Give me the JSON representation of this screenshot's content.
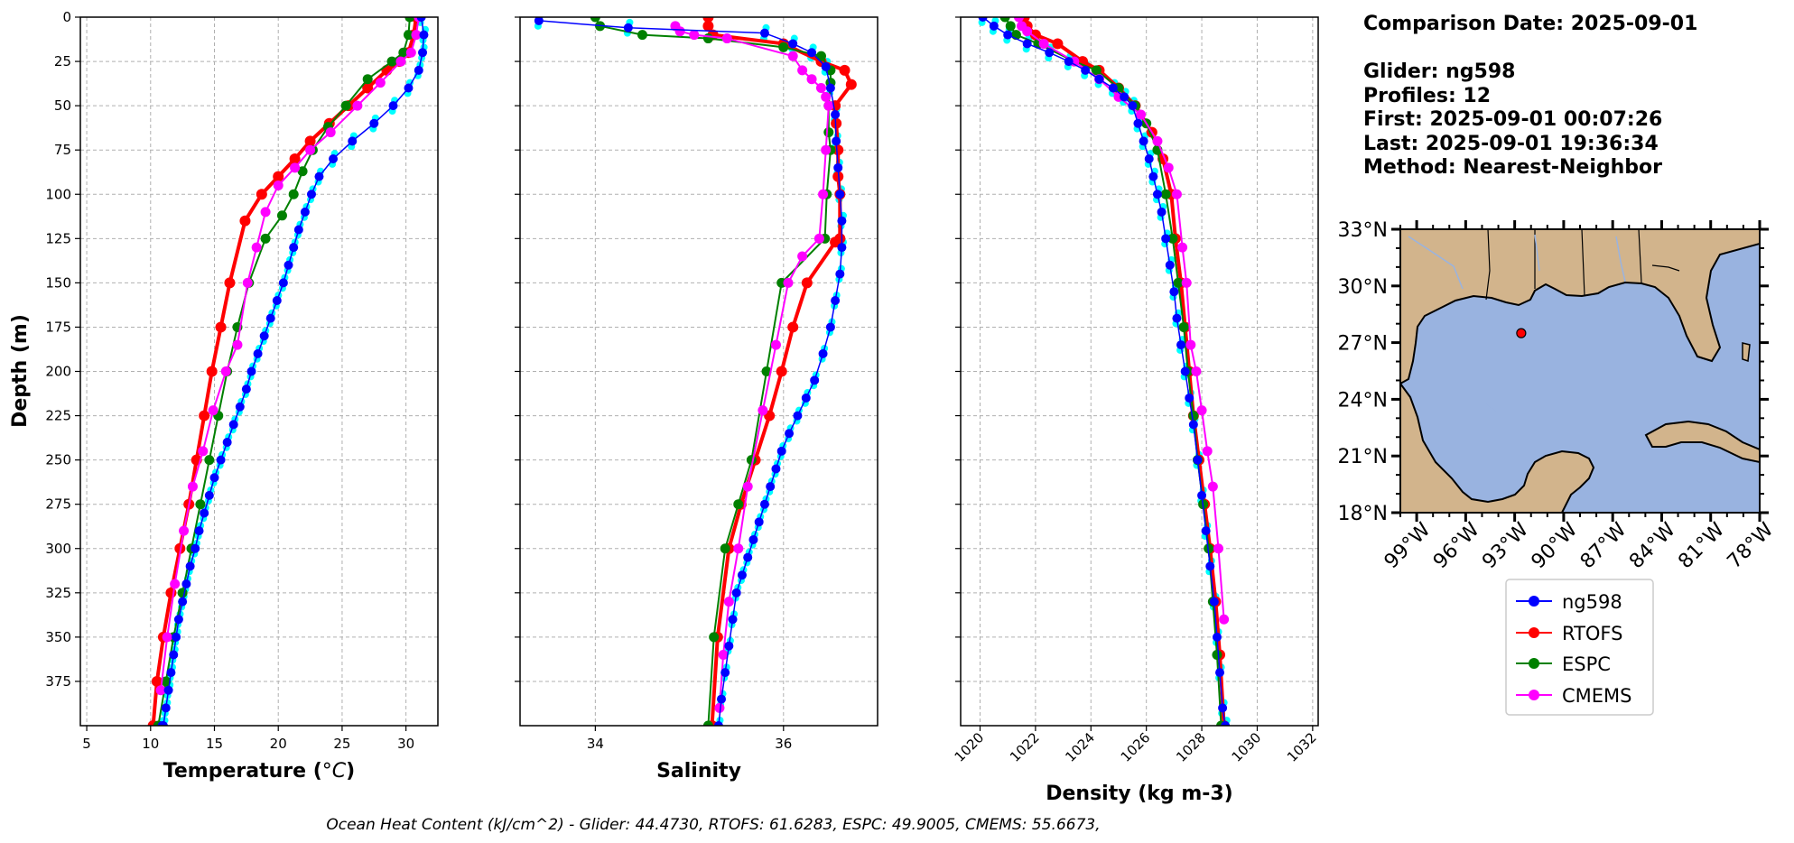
{
  "info": {
    "comparison_date": "Comparison Date: 2025-09-01",
    "glider": "Glider: ng598",
    "profiles": "Profiles: 12",
    "first": "First: 2025-09-01 00:07:26",
    "last": "Last: 2025-09-01 19:36:34",
    "method": "Method: Nearest-Neighbor"
  },
  "footer": "Ocean Heat Content (kJ/cm^2) - Glider: 44.4730,  RTOFS: 61.6283,  ESPC: 49.9005,  CMEMS: 55.6673,",
  "colors": {
    "glider": "#0000ff",
    "glider_individual": "#00ffff",
    "rtofs": "#ff0000",
    "espc": "#008000",
    "cmems": "#ff00ff",
    "land": "#d2b48c",
    "ocean": "#99b3e0",
    "grid": "#b0b0b0"
  },
  "legend": [
    {
      "label": "ng598",
      "color": "#0000ff"
    },
    {
      "label": "RTOFS",
      "color": "#ff0000"
    },
    {
      "label": "ESPC",
      "color": "#008000"
    },
    {
      "label": "CMEMS",
      "color": "#ff00ff"
    }
  ],
  "map": {
    "lat_ticks": [
      "33°N",
      "30°N",
      "27°N",
      "24°N",
      "21°N",
      "18°N"
    ],
    "lon_ticks": [
      "99°W",
      "96°W",
      "93°W",
      "90°W",
      "87°W",
      "84°W",
      "81°W",
      "78°W"
    ],
    "extent": {
      "lon": [
        -100,
        -78
      ],
      "lat": [
        18,
        33
      ]
    },
    "glider_location": {
      "lon": -92.6,
      "lat": 27.5
    }
  },
  "chart_data": [
    {
      "type": "line",
      "xlabel": "Temperature ($^oC$)",
      "xlabel_main": "Temperature (",
      "xlabel_unit": "°C",
      "ylabel": "Depth (m)",
      "xlim": [
        4.5,
        32.5
      ],
      "ylim": [
        400,
        0
      ],
      "grid": true,
      "xticks": [
        5,
        10,
        15,
        20,
        25,
        30
      ],
      "yticks": [
        0,
        25,
        50,
        75,
        100,
        125,
        150,
        175,
        200,
        225,
        250,
        275,
        300,
        325,
        350,
        375
      ],
      "series": [
        {
          "name": "ng598",
          "x": [
            31.2,
            31.4,
            31.3,
            31.0,
            30.2,
            29.0,
            27.5,
            25.8,
            24.3,
            23.2,
            22.6,
            22.1,
            21.6,
            21.2,
            20.8,
            20.4,
            19.9,
            19.4,
            18.9,
            18.4,
            17.9,
            17.5,
            17.0,
            16.5,
            16.0,
            15.5,
            15.0,
            14.6,
            14.2,
            13.8,
            13.5,
            13.1,
            12.8,
            12.5,
            12.2,
            12.0,
            11.8,
            11.6,
            11.4,
            11.2,
            11.0,
            10.9
          ],
          "y": [
            0,
            10,
            20,
            30,
            40,
            50,
            60,
            70,
            80,
            90,
            100,
            110,
            120,
            130,
            140,
            150,
            160,
            170,
            180,
            190,
            200,
            210,
            220,
            230,
            240,
            250,
            260,
            270,
            280,
            290,
            300,
            310,
            320,
            330,
            340,
            350,
            360,
            370,
            380,
            390,
            400,
            400
          ]
        },
        {
          "name": "RTOFS",
          "x": [
            30.8,
            30.6,
            30.2,
            29.5,
            28.5,
            27.0,
            25.5,
            24.0,
            22.5,
            21.3,
            20.0,
            18.7,
            17.4,
            16.2,
            15.5,
            14.8,
            14.2,
            13.6,
            13.0,
            12.3,
            11.6,
            11.0,
            10.5,
            10.2
          ],
          "y": [
            0,
            10,
            20,
            25,
            30,
            40,
            50,
            60,
            70,
            80,
            90,
            100,
            115,
            150,
            175,
            200,
            225,
            250,
            275,
            300,
            325,
            350,
            375,
            400
          ]
        },
        {
          "name": "ESPC",
          "x": [
            30.3,
            30.2,
            29.8,
            28.9,
            27.0,
            25.3,
            23.9,
            22.7,
            21.9,
            21.2,
            20.3,
            19.0,
            17.7,
            16.8,
            16.0,
            15.3,
            14.6,
            13.9,
            13.2,
            12.5,
            11.8,
            11.2,
            10.6
          ],
          "y": [
            0,
            10,
            20,
            25,
            35,
            50,
            62,
            75,
            87,
            100,
            112,
            125,
            150,
            175,
            200,
            225,
            250,
            275,
            300,
            325,
            350,
            375,
            400
          ]
        },
        {
          "name": "CMEMS",
          "x": [
            31.0,
            30.8,
            30.4,
            29.6,
            28.0,
            26.2,
            24.1,
            22.5,
            21.3,
            20.0,
            19.0,
            18.3,
            17.6,
            16.8,
            15.9,
            14.9,
            14.1,
            13.3,
            12.6,
            11.9,
            11.3,
            10.8
          ],
          "y": [
            0,
            10,
            20,
            25,
            37,
            50,
            65,
            75,
            85,
            95,
            110,
            130,
            150,
            185,
            200,
            222,
            245,
            265,
            290,
            320,
            350,
            380
          ]
        }
      ]
    },
    {
      "type": "line",
      "xlabel": "Salinity",
      "xlim": [
        33.2,
        37.0
      ],
      "ylim": [
        400,
        0
      ],
      "grid": true,
      "xticks": [
        34,
        36
      ],
      "yticks": [
        0,
        25,
        50,
        75,
        100,
        125,
        150,
        175,
        200,
        225,
        250,
        275,
        300,
        325,
        350,
        375
      ],
      "series": [
        {
          "name": "ng598",
          "x": [
            33.4,
            34.35,
            35.8,
            36.1,
            36.3,
            36.45,
            36.5,
            36.55,
            36.56,
            36.58,
            36.6,
            36.62,
            36.62,
            36.6,
            36.55,
            36.5,
            36.42,
            36.33,
            36.24,
            36.15,
            36.06,
            35.98,
            35.92,
            35.86,
            35.8,
            35.74,
            35.68,
            35.62,
            35.56,
            35.5,
            35.46,
            35.42,
            35.38,
            35.34,
            35.31
          ],
          "y": [
            2,
            6,
            9,
            15,
            20,
            28,
            40,
            55,
            70,
            85,
            100,
            115,
            130,
            145,
            160,
            175,
            190,
            205,
            215,
            225,
            235,
            245,
            255,
            265,
            275,
            285,
            295,
            305,
            315,
            325,
            340,
            355,
            370,
            385,
            400
          ]
        },
        {
          "name": "RTOFS",
          "x": [
            35.2,
            35.2,
            35.25,
            36.0,
            36.4,
            36.65,
            36.72,
            36.55,
            36.56,
            36.58,
            36.58,
            36.6,
            36.6,
            36.55,
            36.25,
            36.1,
            35.98,
            35.85,
            35.7,
            35.55,
            35.42,
            35.3,
            35.24
          ],
          "y": [
            0,
            5,
            10,
            15,
            25,
            30,
            38,
            50,
            60,
            75,
            90,
            100,
            125,
            127,
            150,
            175,
            200,
            225,
            250,
            275,
            300,
            350,
            400
          ]
        },
        {
          "name": "ESPC",
          "x": [
            34.0,
            34.05,
            34.5,
            35.2,
            36.0,
            36.4,
            36.5,
            36.5,
            36.48,
            36.48,
            36.5,
            36.46,
            36.44,
            35.98,
            35.82,
            35.66,
            35.52,
            35.38,
            35.26,
            35.2
          ],
          "y": [
            0,
            5,
            10,
            12,
            17,
            22,
            30,
            37,
            50,
            65,
            75,
            100,
            125,
            150,
            200,
            250,
            275,
            300,
            350,
            400
          ]
        },
        {
          "name": "CMEMS",
          "x": [
            34.85,
            34.9,
            35.05,
            35.4,
            36.1,
            36.2,
            36.3,
            36.4,
            36.45,
            36.48,
            36.45,
            36.42,
            36.38,
            36.2,
            36.05,
            35.92,
            35.78,
            35.62,
            35.52,
            35.42,
            35.36,
            35.32
          ],
          "y": [
            5,
            8,
            10,
            12,
            22,
            30,
            35,
            40,
            45,
            50,
            75,
            100,
            125,
            135,
            150,
            185,
            222,
            265,
            300,
            330,
            360,
            390
          ]
        }
      ]
    },
    {
      "type": "line",
      "xlabel": "Density (kg m-3)",
      "xlim": [
        1019.3,
        1032.2
      ],
      "ylim": [
        400,
        0
      ],
      "grid": true,
      "xticks": [
        1020,
        1022,
        1024,
        1026,
        1028,
        1030,
        1032
      ],
      "yticks": [
        0,
        25,
        50,
        75,
        100,
        125,
        150,
        175,
        200,
        225,
        250,
        275,
        300,
        325,
        350,
        375
      ],
      "series": [
        {
          "name": "ng598",
          "x": [
            1020.1,
            1020.5,
            1021.0,
            1021.7,
            1022.5,
            1023.2,
            1023.8,
            1024.3,
            1024.8,
            1025.2,
            1025.5,
            1025.7,
            1025.9,
            1026.1,
            1026.25,
            1026.4,
            1026.55,
            1026.7,
            1026.85,
            1027.0,
            1027.1,
            1027.25,
            1027.4,
            1027.55,
            1027.7,
            1027.85,
            1028.0,
            1028.15,
            1028.3,
            1028.45,
            1028.55,
            1028.65,
            1028.75,
            1028.85
          ],
          "y": [
            0,
            5,
            10,
            15,
            20,
            25,
            30,
            35,
            40,
            45,
            50,
            60,
            70,
            80,
            90,
            100,
            110,
            125,
            140,
            155,
            170,
            185,
            200,
            215,
            230,
            250,
            270,
            290,
            310,
            330,
            350,
            370,
            390,
            400
          ]
        },
        {
          "name": "RTOFS",
          "x": [
            1021.6,
            1021.7,
            1022.0,
            1022.8,
            1023.7,
            1024.3,
            1025.0,
            1025.6,
            1026.2,
            1026.6,
            1026.9,
            1027.05,
            1027.25,
            1027.4,
            1027.55,
            1027.7,
            1027.9,
            1028.1,
            1028.3,
            1028.5,
            1028.65,
            1028.8
          ],
          "y": [
            0,
            5,
            10,
            15,
            25,
            30,
            40,
            50,
            65,
            80,
            100,
            125,
            150,
            175,
            200,
            225,
            250,
            275,
            300,
            330,
            360,
            400
          ]
        },
        {
          "name": "ESPC",
          "x": [
            1020.9,
            1021.1,
            1021.3,
            1022.1,
            1023.4,
            1024.2,
            1025.0,
            1025.6,
            1026.0,
            1026.4,
            1026.7,
            1026.95,
            1027.15,
            1027.35,
            1027.5,
            1027.7,
            1027.85,
            1028.05,
            1028.25,
            1028.4,
            1028.55,
            1028.7
          ],
          "y": [
            0,
            5,
            10,
            15,
            25,
            30,
            40,
            50,
            60,
            75,
            100,
            125,
            150,
            175,
            200,
            225,
            250,
            275,
            300,
            330,
            360,
            400
          ]
        },
        {
          "name": "CMEMS",
          "x": [
            1021.4,
            1021.5,
            1021.7,
            1022.3,
            1023.4,
            1024.3,
            1025.0,
            1025.8,
            1026.4,
            1026.8,
            1027.1,
            1027.3,
            1027.45,
            1027.6,
            1027.8,
            1028.0,
            1028.2,
            1028.4,
            1028.6,
            1028.8
          ],
          "y": [
            0,
            5,
            8,
            15,
            25,
            35,
            45,
            55,
            70,
            85,
            100,
            130,
            150,
            185,
            200,
            222,
            245,
            265,
            300,
            340
          ]
        }
      ]
    }
  ]
}
